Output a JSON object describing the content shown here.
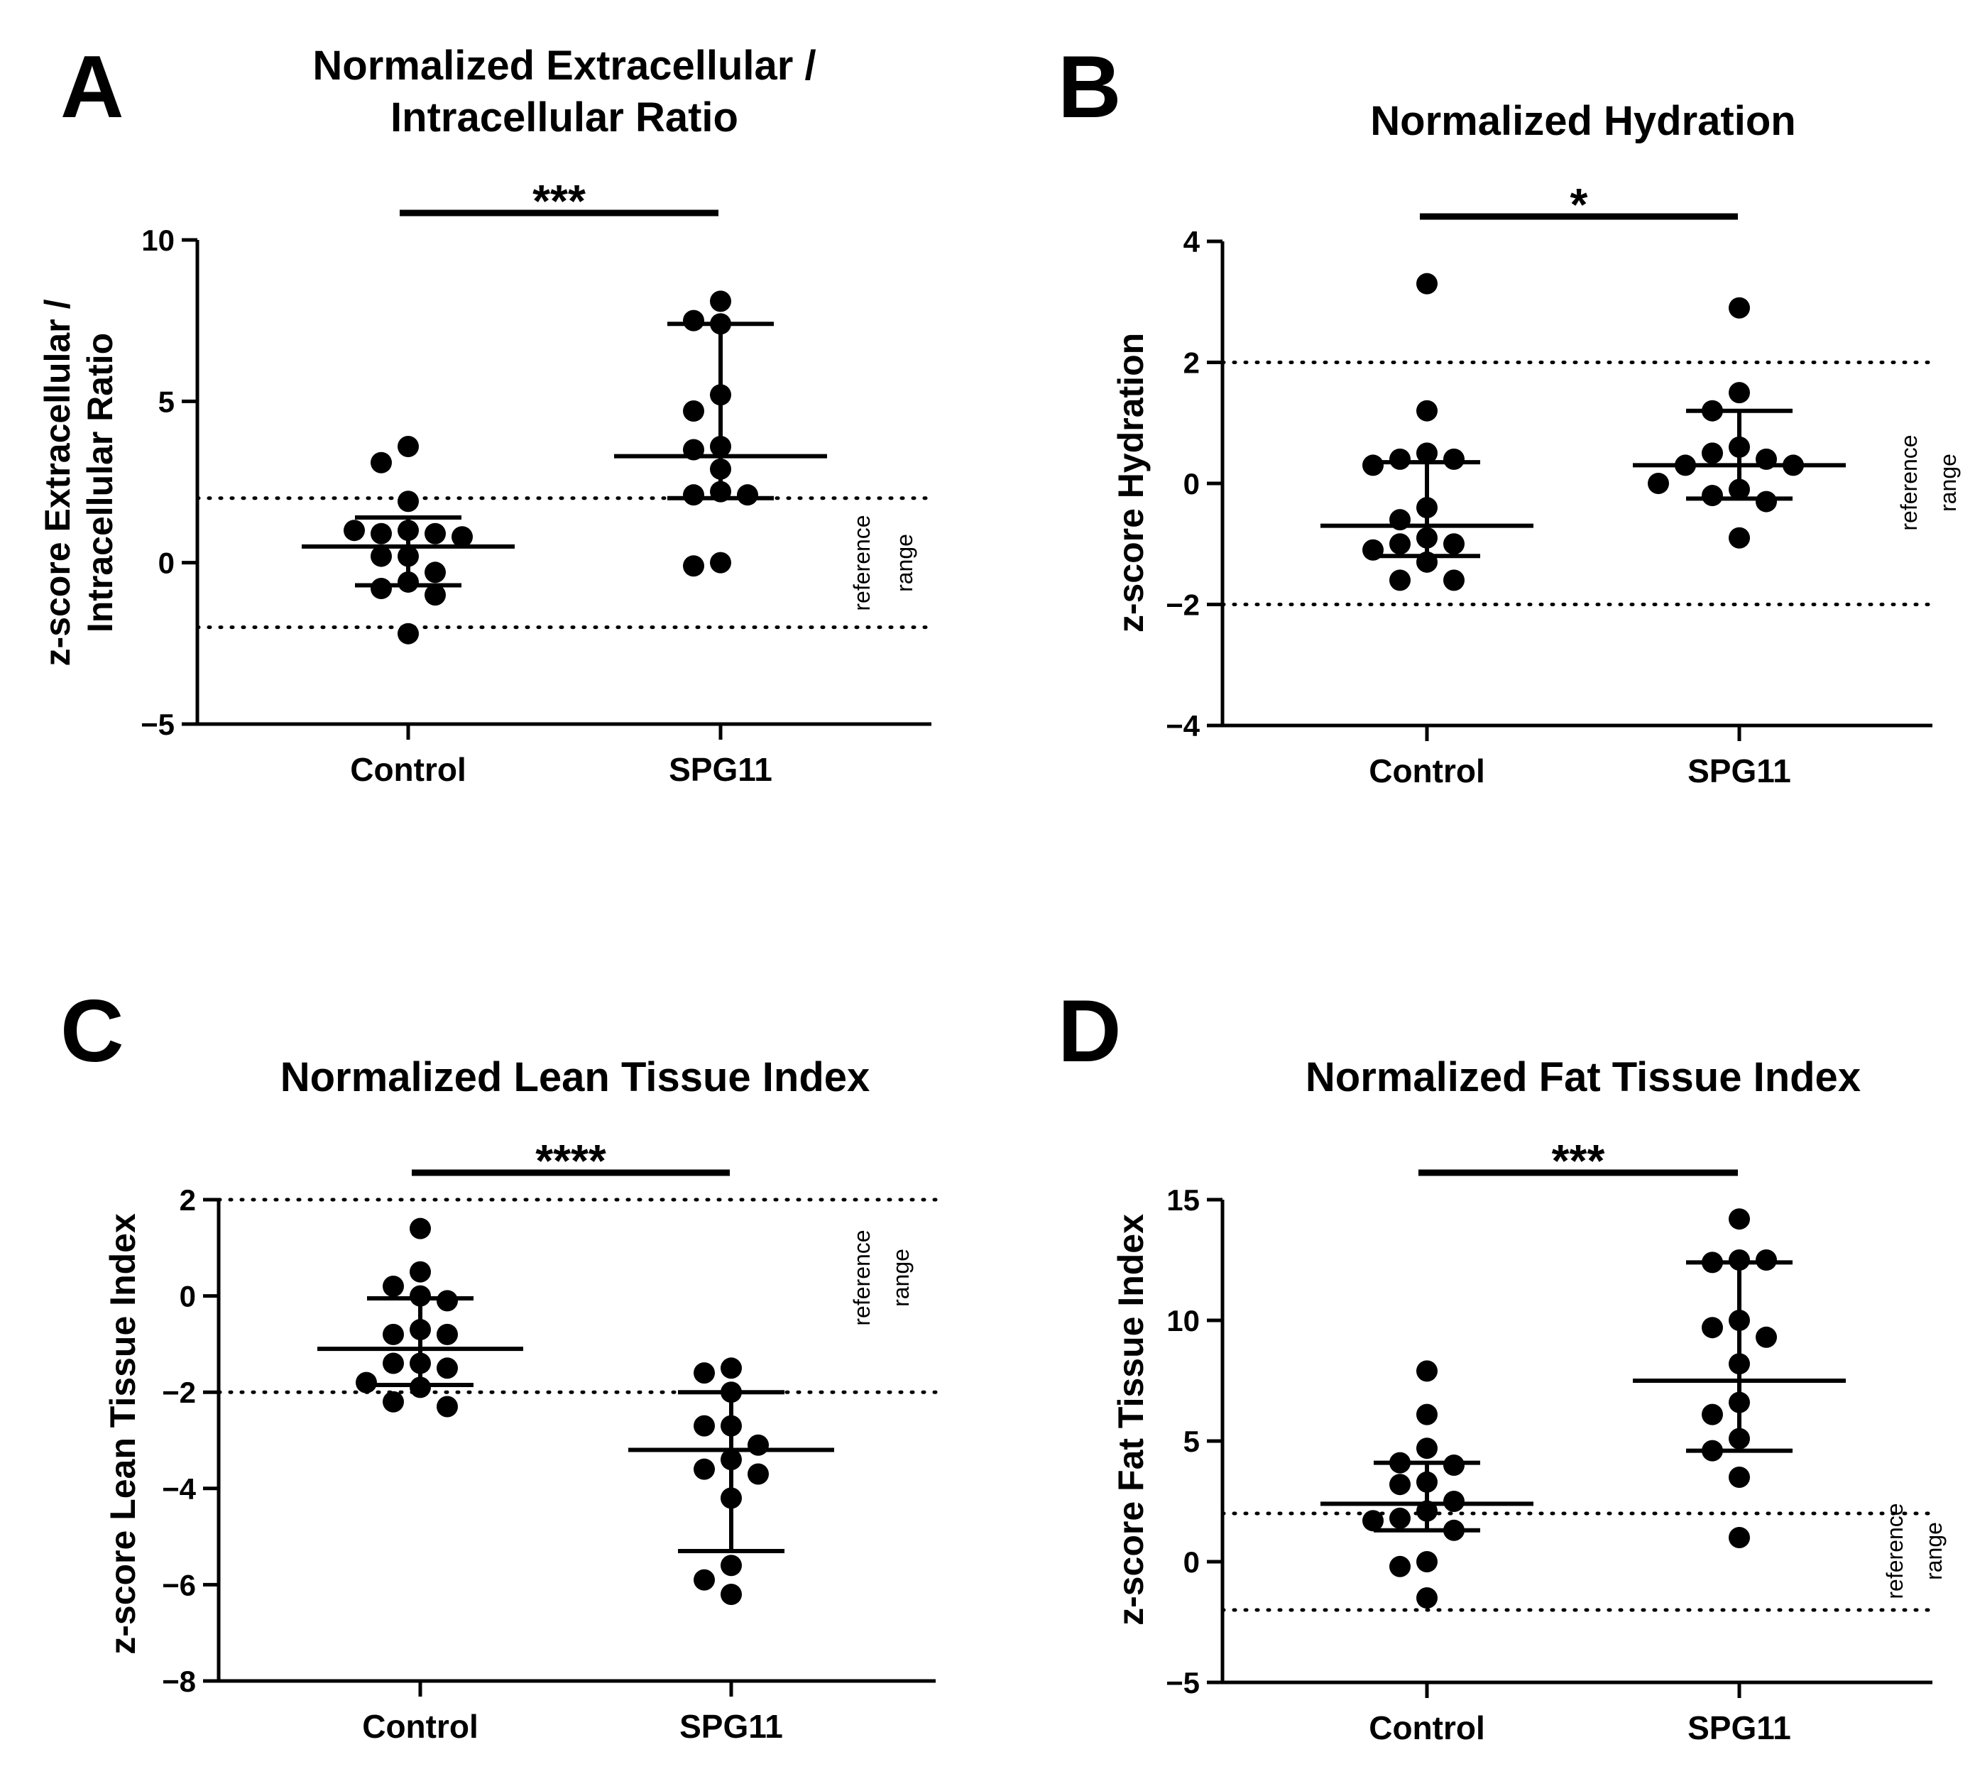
{
  "figure": {
    "background": "#ffffff",
    "ink": "#000000"
  },
  "chart_data": [
    {
      "panel": "A",
      "type": "scatter",
      "title_lines": [
        "Normalized Extracellular /",
        "Intracellular Ratio"
      ],
      "ylabel_lines": [
        "z-score Extracellular /",
        "Intracellular Ratio"
      ],
      "categories": [
        "Control",
        "SPG11"
      ],
      "ylim": [
        -5,
        10
      ],
      "yticks": [
        10,
        5,
        0,
        -5
      ],
      "ytick_labels": [
        "10",
        "5",
        "0",
        "−5"
      ],
      "reference_lines": [
        2,
        -2
      ],
      "reference_label": [
        "reference",
        "range"
      ],
      "significance": "***",
      "series": [
        {
          "name": "Control",
          "values": [
            3.6,
            3.1,
            1.9,
            1.0,
            0.9,
            0.9,
            1.0,
            0.8,
            0.2,
            0.2,
            -0.3,
            -0.6,
            -0.8,
            -1.0,
            -2.2
          ],
          "median": 0.5,
          "q1": -0.7,
          "q3": 1.4
        },
        {
          "name": "SPG11",
          "values": [
            8.1,
            7.5,
            7.4,
            5.2,
            4.7,
            3.6,
            3.5,
            2.9,
            2.2,
            2.1,
            2.1,
            0.0,
            -0.1
          ],
          "median": 3.3,
          "q1": 2.0,
          "q3": 7.4
        }
      ]
    },
    {
      "panel": "B",
      "type": "scatter",
      "title_lines": [
        "Normalized Hydration"
      ],
      "ylabel_lines": [
        "z-score Hydration"
      ],
      "categories": [
        "Control",
        "SPG11"
      ],
      "ylim": [
        -4,
        4
      ],
      "yticks": [
        4,
        2,
        0,
        -2,
        -4
      ],
      "ytick_labels": [
        "4",
        "2",
        "0",
        "−2",
        "−4"
      ],
      "reference_lines": [
        2,
        -2
      ],
      "reference_label": [
        "reference",
        "range"
      ],
      "significance": "*",
      "series": [
        {
          "name": "Control",
          "values": [
            3.3,
            1.2,
            0.5,
            0.4,
            0.4,
            0.3,
            -0.4,
            -0.6,
            -0.9,
            -1.0,
            -1.0,
            -1.1,
            -1.3,
            -1.6,
            -1.6
          ],
          "median": -0.7,
          "q1": -1.2,
          "q3": 0.35
        },
        {
          "name": "SPG11",
          "values": [
            2.9,
            1.5,
            1.2,
            0.6,
            0.5,
            0.4,
            0.3,
            0.3,
            -0.1,
            -0.2,
            -0.3,
            -0.9,
            0.0
          ],
          "median": 0.3,
          "q1": -0.25,
          "q3": 1.2
        }
      ]
    },
    {
      "panel": "C",
      "type": "scatter",
      "title_lines": [
        "Normalized Lean Tissue Index"
      ],
      "ylabel_lines": [
        "z-score Lean Tissue Index"
      ],
      "categories": [
        "Control",
        "SPG11"
      ],
      "ylim": [
        -8,
        2
      ],
      "yticks": [
        2,
        0,
        -2,
        -4,
        -6,
        -8
      ],
      "ytick_labels": [
        "2",
        "0",
        "−2",
        "−4",
        "−6",
        "−8"
      ],
      "reference_lines": [
        2,
        -2
      ],
      "reference_label": [
        "reference",
        "range"
      ],
      "significance": "****",
      "series": [
        {
          "name": "Control",
          "values": [
            1.4,
            0.5,
            0.2,
            0.0,
            -0.1,
            -0.7,
            -0.8,
            -0.8,
            -1.4,
            -1.4,
            -1.5,
            -1.8,
            -1.9,
            -2.2,
            -2.3
          ],
          "median": -1.1,
          "q1": -1.85,
          "q3": -0.05
        },
        {
          "name": "SPG11",
          "values": [
            -1.5,
            -1.6,
            -2.0,
            -2.7,
            -2.7,
            -3.1,
            -3.4,
            -3.6,
            -3.7,
            -4.2,
            -5.6,
            -5.9,
            -6.2
          ],
          "median": -3.2,
          "q1": -5.3,
          "q3": -2.0
        }
      ]
    },
    {
      "panel": "D",
      "type": "scatter",
      "title_lines": [
        "Normalized Fat Tissue Index"
      ],
      "ylabel_lines": [
        "z-score Fat Tissue Index"
      ],
      "categories": [
        "Control",
        "SPG11"
      ],
      "ylim": [
        -5,
        15
      ],
      "yticks": [
        15,
        10,
        5,
        0,
        -5
      ],
      "ytick_labels": [
        "15",
        "10",
        "5",
        "0",
        "−5"
      ],
      "reference_lines": [
        2,
        -2
      ],
      "reference_label": [
        "reference",
        "range"
      ],
      "significance": "***",
      "series": [
        {
          "name": "Control",
          "values": [
            7.9,
            6.1,
            4.7,
            4.1,
            4.0,
            3.3,
            3.2,
            2.5,
            2.1,
            1.8,
            1.7,
            1.3,
            0.0,
            -0.2,
            -1.5
          ],
          "median": 2.4,
          "q1": 1.3,
          "q3": 4.1
        },
        {
          "name": "SPG11",
          "values": [
            14.2,
            12.5,
            12.4,
            12.5,
            10.0,
            9.7,
            9.3,
            8.2,
            6.6,
            6.1,
            5.1,
            4.6,
            3.5,
            1.0
          ],
          "median": 7.5,
          "q1": 4.6,
          "q3": 12.4
        }
      ]
    }
  ]
}
